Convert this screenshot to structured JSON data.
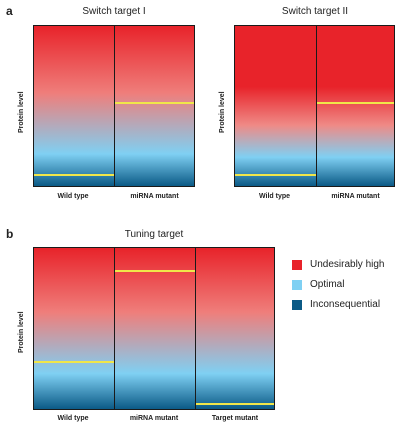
{
  "panel_a": {
    "letter": "a",
    "left": {
      "title": "Switch target I",
      "ylabel": "Protein level",
      "columns": [
        "Wild type",
        "miRNA mutant"
      ],
      "levels": [
        0.93,
        0.48
      ]
    },
    "right": {
      "title": "Switch target II",
      "ylabel": "Protein level",
      "columns": [
        "Wild type",
        "miRNA mutant"
      ],
      "levels": [
        0.93,
        0.48
      ]
    }
  },
  "panel_b": {
    "letter": "b",
    "title": "Tuning target",
    "ylabel": "Protein level",
    "columns": [
      "Wild type",
      "miRNA mutant",
      "Target mutant"
    ],
    "levels": [
      0.71,
      0.14,
      0.97
    ]
  },
  "legend": {
    "items": [
      {
        "label": "Undesirably high",
        "color": "#e8232a"
      },
      {
        "label": "Optimal",
        "color": "#7fd0f3"
      },
      {
        "label": "Inconsequential",
        "color": "#0b5a86"
      }
    ]
  }
}
